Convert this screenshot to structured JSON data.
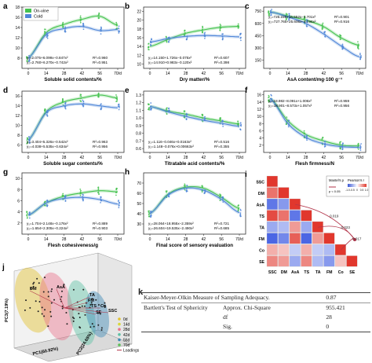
{
  "legend": {
    "series": [
      {
        "name": "On-vine",
        "color": "#45c24f"
      },
      {
        "name": "Cold",
        "color": "#4f86d8"
      }
    ]
  },
  "colors": {
    "onvine": "#45c24f",
    "cold": "#4f86d8"
  },
  "chart_data": [
    {
      "id": "a",
      "type": "scatter",
      "xlabel": "Soluble solid contents/%",
      "xticks": [
        "0",
        "14",
        "28",
        "42",
        "56",
        "70/d"
      ],
      "yticks": [
        "8",
        "10",
        "12",
        "14",
        "16",
        "18"
      ],
      "ylim": [
        6,
        18
      ],
      "eq_onvine": "y₁=2.075+6.099x−0.847x²",
      "r2_onvine": "R²=0.960",
      "eq_cold": "y₂=2.760+6.270x−0.742x²",
      "r2_cold": "R²=0.951",
      "series": [
        {
          "name": "On-vine",
          "values": [
            8,
            13,
            14.6,
            15.6,
            16.2,
            14.4
          ]
        },
        {
          "name": "Cold",
          "values": [
            8,
            12.6,
            13.8,
            14.2,
            13.4,
            13.6
          ]
        }
      ]
    },
    {
      "id": "b",
      "type": "scatter",
      "xlabel": "Dry matter/%",
      "xticks": [
        "0",
        "14",
        "28",
        "42",
        "56",
        "70/d"
      ],
      "yticks": [
        "10",
        "12",
        "14",
        "16",
        "18",
        "20",
        "22"
      ],
      "ylim": [
        9,
        23
      ],
      "eq_onvine": "y₁=14.150+1.726x−0.075x²",
      "r2_onvine": "R²=0.607",
      "eq_cold": "y₂=14.910+0.983x−0.120x²",
      "r2_cold": "R²=0.398",
      "series": [
        {
          "name": "On-vine",
          "values": [
            14,
            15.6,
            17.0,
            17.8,
            18.4,
            18.6
          ]
        },
        {
          "name": "Cold",
          "values": [
            15,
            15.8,
            16.3,
            16.5,
            16.4,
            16.2
          ]
        }
      ]
    },
    {
      "id": "c",
      "type": "scatter",
      "xlabel": "AsA content/mg·100 g⁻¹",
      "xticks": [
        "0",
        "14",
        "28",
        "42",
        "56",
        "70/d"
      ],
      "yticks": [
        "150",
        "300",
        "450",
        "600",
        "750"
      ],
      "ylim": [
        50,
        800
      ],
      "eq_onvine": "y₁=726.239+16.552x−3.701x²",
      "r2_onvine": "R²=0.901",
      "eq_cold": "y₂=727.765+25.606x−4.796x²",
      "r2_cold": "R²=0.916",
      "series": [
        {
          "name": "On-vine",
          "values": [
            740,
            690,
            640,
            560,
            420,
            330
          ]
        },
        {
          "name": "Cold",
          "values": [
            740,
            680,
            600,
            470,
            320,
            190
          ]
        }
      ]
    },
    {
      "id": "d",
      "type": "scatter",
      "xlabel": "Soluble sugar contents/%",
      "xticks": [
        "0",
        "14",
        "28",
        "42",
        "56",
        "70/d"
      ],
      "yticks": [
        "6",
        "8",
        "10",
        "12",
        "14",
        "16"
      ],
      "ylim": [
        4.5,
        17
      ],
      "eq_onvine": "y₁=3.404+5.326x−0.542x²",
      "r2_onvine": "R²=0.963",
      "eq_cold": "y₂=4.038+5.535x−0.634x²",
      "r2_cold": "R²=0.956",
      "series": [
        {
          "name": "On-vine",
          "values": [
            7,
            12.8,
            14.8,
            15.6,
            16.2,
            15.6
          ]
        },
        {
          "name": "Cold",
          "values": [
            7,
            12.6,
            14.0,
            14.4,
            14.0,
            13.6
          ]
        }
      ]
    },
    {
      "id": "e",
      "type": "scatter",
      "xlabel": "Titratable acid contents/%",
      "xticks": [
        "0",
        "14",
        "28",
        "42",
        "56",
        "70/d"
      ],
      "yticks": [
        "0.6",
        "0.7",
        "0.8",
        "0.9",
        "1.0",
        "1.1",
        "1.2",
        "1.3"
      ],
      "ylim": [
        0.55,
        1.35
      ],
      "eq_onvine": "y₁=1.116−0.046x+0.0163x²",
      "r2_onvine": "R²=0.516",
      "eq_cold": "y₂=1.148−0.076x+0.00663x²",
      "r2_cold": "R²=0.355",
      "series": [
        {
          "name": "On-vine",
          "values": [
            1.15,
            1.09,
            1.05,
            1.0,
            0.96,
            0.92
          ]
        },
        {
          "name": "Cold",
          "values": [
            1.15,
            1.08,
            1.02,
            0.97,
            0.93,
            0.89
          ]
        }
      ]
    },
    {
      "id": "f",
      "type": "scatter",
      "xlabel": "Flesh firmness/N",
      "xticks": [
        "0",
        "14",
        "28",
        "42",
        "56",
        "70/d"
      ],
      "yticks": [
        "2",
        "4",
        "6",
        "8",
        "10",
        "12",
        "14",
        "16"
      ],
      "ylim": [
        0,
        17
      ],
      "eq_onvine": "y₁=18.982−8.091x+1.006x²",
      "r2_onvine": "R²=0.959",
      "eq_cold": "y₂=18.901−8.573x+1.057x²",
      "r2_cold": "R²=0.956",
      "series": [
        {
          "name": "On-vine",
          "values": [
            15,
            8.8,
            5.0,
            3.2,
            2.0,
            1.8
          ]
        },
        {
          "name": "Cold",
          "values": [
            15,
            8.0,
            4.2,
            2.4,
            1.6,
            1.4
          ]
        }
      ]
    },
    {
      "id": "g",
      "type": "scatter",
      "xlabel": "Flesh cohesiveness/g",
      "xticks": [
        "0",
        "14",
        "28",
        "42",
        "56",
        "70/d"
      ],
      "yticks": [
        "2",
        "4",
        "6",
        "8",
        "10"
      ],
      "ylim": [
        0,
        11
      ],
      "eq_onvine": "y₁=1.704+2.148x−0.176x²",
      "r2_onvine": "R²=0.889",
      "eq_cold": "y₂=1.654+2.305x−0.224x²",
      "r2_cold": "R²=0.903",
      "series": [
        {
          "name": "On-vine",
          "values": [
            3.4,
            5.6,
            6.8,
            7.4,
            7.8,
            7.6
          ]
        },
        {
          "name": "Cold",
          "values": [
            3.4,
            5.6,
            6.4,
            6.6,
            6.2,
            5.4
          ]
        }
      ]
    },
    {
      "id": "h",
      "type": "scatter",
      "xlabel": "Final score of sensory evaluation",
      "xticks": [
        "0",
        "14",
        "28",
        "42",
        "56",
        "70/d"
      ],
      "yticks": [
        "30",
        "40",
        "50",
        "60",
        "70"
      ],
      "ylim": [
        20,
        80
      ],
      "eq_onvine": "y₁=28.064+18.955x−2.359x²",
      "r2_onvine": "R²=0.721",
      "eq_cold": "y₂=26.604+19.535x−2.490x²",
      "r2_cold": "R²=0.685",
      "series": [
        {
          "name": "On-vine",
          "values": [
            40,
            59,
            66,
            65,
            56,
            45
          ]
        },
        {
          "name": "Cold",
          "values": [
            40,
            58,
            65,
            63,
            54,
            41
          ]
        }
      ]
    },
    {
      "id": "i",
      "type": "heatmap",
      "variables": [
        "SSC",
        "DM",
        "AsA",
        "TS",
        "TA",
        "FM",
        "Co",
        "SE"
      ],
      "mantel_legend": {
        "title1": "Mantel's p",
        "title2": "Pearson's r",
        "p_label": "p < 0.05",
        "scale": [
          "-1.0",
          "-0.5",
          "0",
          "0.5",
          "1.0"
        ]
      },
      "links": [
        "0.019",
        "0.023",
        "0.017"
      ],
      "values": [
        [],
        [
          0.7
        ],
        [
          -0.8,
          -0.6
        ],
        [
          0.9,
          0.7,
          -0.8
        ],
        [
          -0.5,
          -0.4,
          0.5,
          -0.5
        ],
        [
          -0.9,
          -0.7,
          0.8,
          -0.9,
          0.5
        ],
        [
          0.4,
          0.3,
          -0.3,
          0.4,
          -0.3,
          -0.4
        ],
        [
          0.6,
          0.5,
          -0.5,
          0.6,
          -0.4,
          -0.6,
          0.3
        ]
      ]
    },
    {
      "id": "j",
      "type": "scatter",
      "xlabel": "PC1(60.92%)",
      "ylabel": "PC3(7.19%)",
      "zlabel": "PC2(24.65%)",
      "labels": [
        "DM",
        "AsA",
        "FM",
        "TA",
        "TS",
        "SE",
        "Co",
        "SSC"
      ],
      "legend": [
        "0d",
        "14d",
        "28d",
        "42d",
        "56d",
        "70d",
        "Loadings"
      ],
      "legend_colors": [
        "#e2c22f",
        "#d8d83a",
        "#e8748b",
        "#5ec1a4",
        "#3f8ab5",
        "#5cbe58",
        "#b3354a"
      ]
    }
  ],
  "table_k": {
    "letter": "k",
    "row1_label": "Kaiser-Meyer-Olkin Measure of Sampling Adequacy.",
    "row1_value": "0.87",
    "row2_label": "Bartlett's Test of Sphericity",
    "row2_sub1": "Approx. Chi-Square",
    "row2_val1": "955.421",
    "row2_sub2": "df",
    "row2_val2": "28",
    "row2_sub3": "Sig.",
    "row2_val3": "0"
  }
}
